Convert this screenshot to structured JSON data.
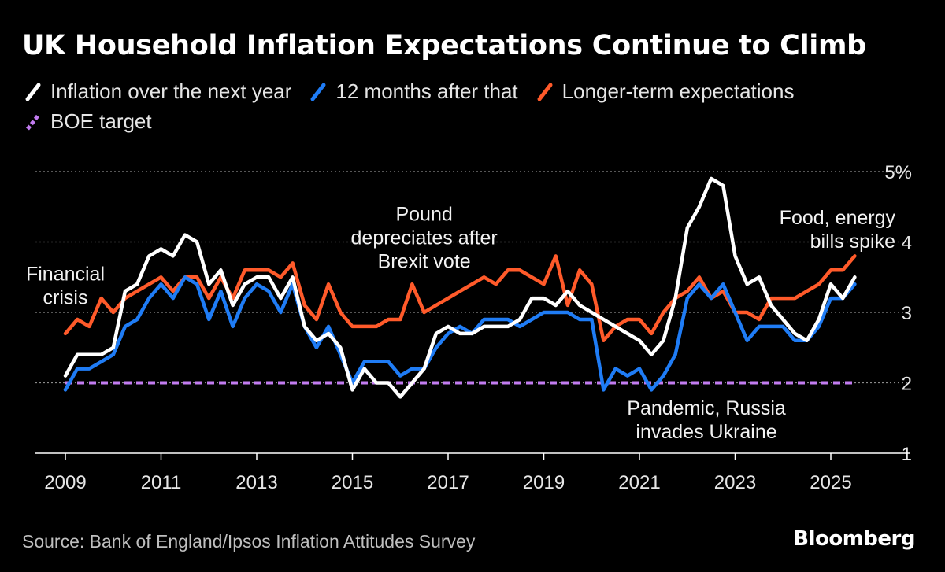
{
  "title": "UK Household Inflation Expectations Continue to Climb",
  "source": "Source: Bank of England/Ipsos Inflation Attitudes Survey",
  "brand": "Bloomberg",
  "colors": {
    "background": "#000000",
    "next_year": "#ffffff",
    "after_that": "#1f7cf5",
    "longer_term": "#ff5a2a",
    "boe_target": "#c27cf0",
    "grid": "#8a8a8a",
    "axis": "#ffffff"
  },
  "legend": [
    {
      "label": "Inflation over the next year",
      "color": "#ffffff",
      "icon": "slash-line-icon"
    },
    {
      "label": "12 months after that",
      "color": "#1f7cf5",
      "icon": "slash-line-icon"
    },
    {
      "label": "Longer-term expectations",
      "color": "#ff5a2a",
      "icon": "slash-line-icon"
    },
    {
      "label": "BOE target",
      "color": "#c27cf0",
      "icon": "dashed-slash-icon"
    }
  ],
  "chart_data": {
    "type": "line",
    "title": "UK Household Inflation Expectations Continue to Climb",
    "xlabel": "",
    "ylabel": "",
    "xlim": [
      2009,
      2026.6
    ],
    "ylim": [
      1,
      5
    ],
    "y_ticks": [
      1,
      2,
      3,
      4,
      5
    ],
    "y_tick_labels": [
      "1",
      "2",
      "3",
      "4",
      "5%"
    ],
    "x_ticks": [
      2009,
      2011,
      2013,
      2015,
      2017,
      2019,
      2021,
      2023,
      2025
    ],
    "x_tick_labels": [
      "2009",
      "2011",
      "2013",
      "2015",
      "2017",
      "2019",
      "2021",
      "2023",
      "2025"
    ],
    "grid": true,
    "series": [
      {
        "name": "Inflation over the next year",
        "color": "#ffffff",
        "points": [
          [
            2009.0,
            2.1
          ],
          [
            2009.25,
            2.4
          ],
          [
            2009.5,
            2.4
          ],
          [
            2009.75,
            2.4
          ],
          [
            2010.0,
            2.5
          ],
          [
            2010.25,
            3.3
          ],
          [
            2010.5,
            3.4
          ],
          [
            2010.75,
            3.8
          ],
          [
            2011.0,
            3.9
          ],
          [
            2011.25,
            3.8
          ],
          [
            2011.5,
            4.1
          ],
          [
            2011.75,
            4.0
          ],
          [
            2012.0,
            3.4
          ],
          [
            2012.25,
            3.6
          ],
          [
            2012.5,
            3.1
          ],
          [
            2012.75,
            3.4
          ],
          [
            2013.0,
            3.5
          ],
          [
            2013.25,
            3.5
          ],
          [
            2013.5,
            3.2
          ],
          [
            2013.75,
            3.5
          ],
          [
            2014.0,
            2.8
          ],
          [
            2014.25,
            2.6
          ],
          [
            2014.5,
            2.7
          ],
          [
            2014.75,
            2.5
          ],
          [
            2015.0,
            1.9
          ],
          [
            2015.25,
            2.2
          ],
          [
            2015.5,
            2.0
          ],
          [
            2015.75,
            2.0
          ],
          [
            2016.0,
            1.8
          ],
          [
            2016.25,
            2.0
          ],
          [
            2016.5,
            2.2
          ],
          [
            2016.75,
            2.7
          ],
          [
            2017.0,
            2.8
          ],
          [
            2017.25,
            2.7
          ],
          [
            2017.5,
            2.7
          ],
          [
            2017.75,
            2.8
          ],
          [
            2018.0,
            2.8
          ],
          [
            2018.25,
            2.8
          ],
          [
            2018.5,
            2.9
          ],
          [
            2018.75,
            3.2
          ],
          [
            2019.0,
            3.2
          ],
          [
            2019.25,
            3.1
          ],
          [
            2019.5,
            3.3
          ],
          [
            2019.75,
            3.1
          ],
          [
            2020.0,
            3.0
          ],
          [
            2020.25,
            2.9
          ],
          [
            2020.5,
            2.8
          ],
          [
            2020.75,
            2.7
          ],
          [
            2021.0,
            2.6
          ],
          [
            2021.25,
            2.4
          ],
          [
            2021.5,
            2.6
          ],
          [
            2021.75,
            3.2
          ],
          [
            2022.0,
            4.2
          ],
          [
            2022.25,
            4.5
          ],
          [
            2022.5,
            4.9
          ],
          [
            2022.75,
            4.8
          ],
          [
            2023.0,
            3.8
          ],
          [
            2023.25,
            3.4
          ],
          [
            2023.5,
            3.5
          ],
          [
            2023.75,
            3.1
          ],
          [
            2024.0,
            2.9
          ],
          [
            2024.25,
            2.7
          ],
          [
            2024.5,
            2.6
          ],
          [
            2024.75,
            2.9
          ],
          [
            2025.0,
            3.4
          ],
          [
            2025.25,
            3.2
          ],
          [
            2025.5,
            3.5
          ]
        ]
      },
      {
        "name": "12 months after that",
        "color": "#1f7cf5",
        "points": [
          [
            2009.0,
            1.9
          ],
          [
            2009.25,
            2.2
          ],
          [
            2009.5,
            2.2
          ],
          [
            2009.75,
            2.3
          ],
          [
            2010.0,
            2.4
          ],
          [
            2010.25,
            2.8
          ],
          [
            2010.5,
            2.9
          ],
          [
            2010.75,
            3.2
          ],
          [
            2011.0,
            3.4
          ],
          [
            2011.25,
            3.2
          ],
          [
            2011.5,
            3.5
          ],
          [
            2011.75,
            3.4
          ],
          [
            2012.0,
            2.9
          ],
          [
            2012.25,
            3.3
          ],
          [
            2012.5,
            2.8
          ],
          [
            2012.75,
            3.2
          ],
          [
            2013.0,
            3.4
          ],
          [
            2013.25,
            3.3
          ],
          [
            2013.5,
            3.0
          ],
          [
            2013.75,
            3.4
          ],
          [
            2014.0,
            2.8
          ],
          [
            2014.25,
            2.5
          ],
          [
            2014.5,
            2.8
          ],
          [
            2014.75,
            2.4
          ],
          [
            2015.0,
            2.0
          ],
          [
            2015.25,
            2.3
          ],
          [
            2015.5,
            2.3
          ],
          [
            2015.75,
            2.3
          ],
          [
            2016.0,
            2.1
          ],
          [
            2016.25,
            2.2
          ],
          [
            2016.5,
            2.2
          ],
          [
            2016.75,
            2.5
          ],
          [
            2017.0,
            2.7
          ],
          [
            2017.25,
            2.8
          ],
          [
            2017.5,
            2.7
          ],
          [
            2017.75,
            2.9
          ],
          [
            2018.0,
            2.9
          ],
          [
            2018.25,
            2.9
          ],
          [
            2018.5,
            2.8
          ],
          [
            2018.75,
            2.9
          ],
          [
            2019.0,
            3.0
          ],
          [
            2019.25,
            3.0
          ],
          [
            2019.5,
            3.0
          ],
          [
            2019.75,
            2.9
          ],
          [
            2020.0,
            2.9
          ],
          [
            2020.25,
            1.9
          ],
          [
            2020.5,
            2.2
          ],
          [
            2020.75,
            2.1
          ],
          [
            2021.0,
            2.2
          ],
          [
            2021.25,
            1.9
          ],
          [
            2021.5,
            2.1
          ],
          [
            2021.75,
            2.4
          ],
          [
            2022.0,
            3.2
          ],
          [
            2022.25,
            3.4
          ],
          [
            2022.5,
            3.2
          ],
          [
            2022.75,
            3.4
          ],
          [
            2023.0,
            3.0
          ],
          [
            2023.25,
            2.6
          ],
          [
            2023.5,
            2.8
          ],
          [
            2023.75,
            2.8
          ],
          [
            2024.0,
            2.8
          ],
          [
            2024.25,
            2.6
          ],
          [
            2024.5,
            2.6
          ],
          [
            2024.75,
            2.8
          ],
          [
            2025.0,
            3.2
          ],
          [
            2025.25,
            3.2
          ],
          [
            2025.5,
            3.4
          ]
        ]
      },
      {
        "name": "Longer-term expectations",
        "color": "#ff5a2a",
        "points": [
          [
            2009.0,
            2.7
          ],
          [
            2009.25,
            2.9
          ],
          [
            2009.5,
            2.8
          ],
          [
            2009.75,
            3.2
          ],
          [
            2010.0,
            3.0
          ],
          [
            2010.25,
            3.2
          ],
          [
            2010.5,
            3.3
          ],
          [
            2010.75,
            3.4
          ],
          [
            2011.0,
            3.5
          ],
          [
            2011.25,
            3.3
          ],
          [
            2011.5,
            3.5
          ],
          [
            2011.75,
            3.5
          ],
          [
            2012.0,
            3.2
          ],
          [
            2012.25,
            3.5
          ],
          [
            2012.5,
            3.2
          ],
          [
            2012.75,
            3.6
          ],
          [
            2013.0,
            3.6
          ],
          [
            2013.25,
            3.6
          ],
          [
            2013.5,
            3.5
          ],
          [
            2013.75,
            3.7
          ],
          [
            2014.0,
            3.1
          ],
          [
            2014.25,
            2.9
          ],
          [
            2014.5,
            3.4
          ],
          [
            2014.75,
            3.0
          ],
          [
            2015.0,
            2.8
          ],
          [
            2015.25,
            2.8
          ],
          [
            2015.5,
            2.8
          ],
          [
            2015.75,
            2.9
          ],
          [
            2016.0,
            2.9
          ],
          [
            2016.25,
            3.4
          ],
          [
            2016.5,
            3.0
          ],
          [
            2016.75,
            3.1
          ],
          [
            2017.0,
            3.2
          ],
          [
            2017.25,
            3.3
          ],
          [
            2017.5,
            3.4
          ],
          [
            2017.75,
            3.5
          ],
          [
            2018.0,
            3.4
          ],
          [
            2018.25,
            3.6
          ],
          [
            2018.5,
            3.6
          ],
          [
            2018.75,
            3.5
          ],
          [
            2019.0,
            3.4
          ],
          [
            2019.25,
            3.8
          ],
          [
            2019.5,
            3.1
          ],
          [
            2019.75,
            3.6
          ],
          [
            2020.0,
            3.4
          ],
          [
            2020.25,
            2.6
          ],
          [
            2020.5,
            2.8
          ],
          [
            2020.75,
            2.9
          ],
          [
            2021.0,
            2.9
          ],
          [
            2021.25,
            2.7
          ],
          [
            2021.5,
            3.0
          ],
          [
            2021.75,
            3.2
          ],
          [
            2022.0,
            3.3
          ],
          [
            2022.25,
            3.5
          ],
          [
            2022.5,
            3.2
          ],
          [
            2022.75,
            3.3
          ],
          [
            2023.0,
            3.0
          ],
          [
            2023.25,
            3.0
          ],
          [
            2023.5,
            2.9
          ],
          [
            2023.75,
            3.2
          ],
          [
            2024.0,
            3.2
          ],
          [
            2024.25,
            3.2
          ],
          [
            2024.5,
            3.3
          ],
          [
            2024.75,
            3.4
          ],
          [
            2025.0,
            3.6
          ],
          [
            2025.25,
            3.6
          ],
          [
            2025.5,
            3.8
          ]
        ]
      },
      {
        "name": "BOE target",
        "color": "#c27cf0",
        "dashed": true,
        "points": [
          [
            2009.0,
            2.0
          ],
          [
            2025.5,
            2.0
          ]
        ]
      }
    ],
    "annotations": [
      {
        "lines": [
          "Financial",
          "crisis"
        ],
        "x": 2009.0,
        "y": 3.45,
        "anchor": "middle"
      },
      {
        "lines": [
          "Pound",
          "depreciates after",
          "Brexit vote"
        ],
        "x": 2016.5,
        "y": 4.3,
        "anchor": "middle"
      },
      {
        "lines": [
          "Pandemic, Russia",
          "invades Ukraine"
        ],
        "x": 2022.4,
        "y": 1.55,
        "anchor": "middle"
      },
      {
        "lines": [
          "Food, energy",
          "bills spike"
        ],
        "x": 2026.35,
        "y": 4.25,
        "anchor": "end"
      }
    ]
  }
}
